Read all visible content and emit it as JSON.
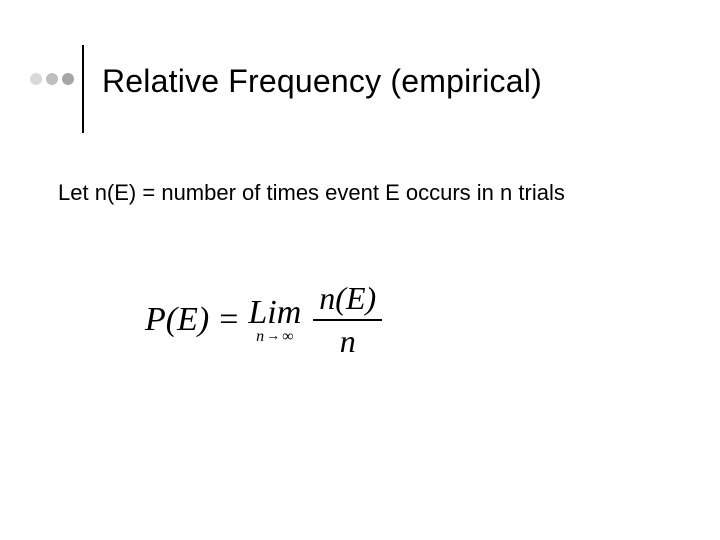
{
  "header": {
    "dots": {
      "color1": "#d9d9d9",
      "color2": "#bfbfbf",
      "color3": "#a6a6a6"
    },
    "title": "Relative Frequency (empirical)"
  },
  "body": {
    "text": "Let n(E) = number of times event E occurs in n trials"
  },
  "formula": {
    "lhs": "P(E)",
    "equals": "=",
    "lim": "Lim",
    "sub_var": "n",
    "sub_arrow": "→",
    "sub_inf": "∞",
    "numerator": "n(E)",
    "denominator": "n"
  },
  "style": {
    "title_fontsize": 32,
    "body_fontsize": 22,
    "formula_fontsize": 34,
    "text_color": "#000000",
    "background_color": "#ffffff",
    "vline_color": "#000000"
  }
}
